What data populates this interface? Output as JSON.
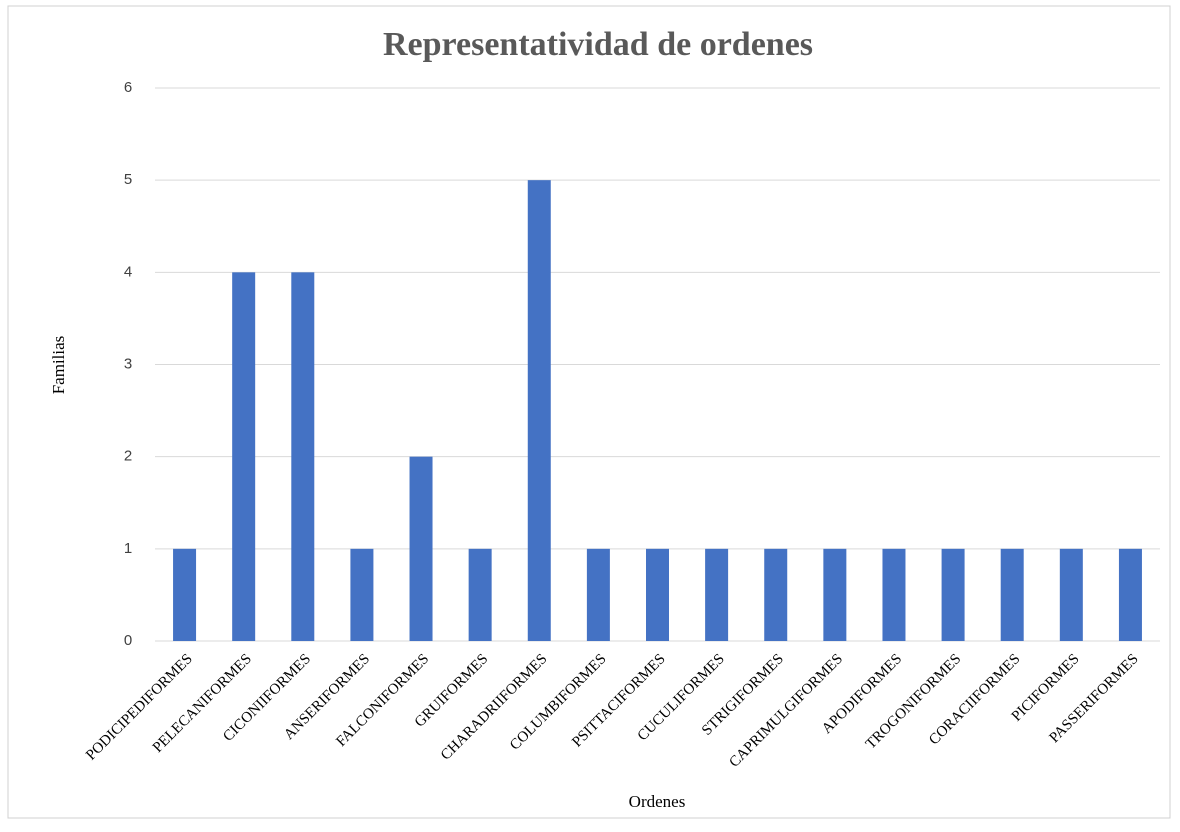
{
  "chart_data": {
    "type": "bar",
    "title": "Representatividad de ordenes",
    "x_label": "Ordenes",
    "y_label": "Familias",
    "categories": [
      "PODICIPEDIFORMES",
      "PELECANIFORMES",
      "CICONIIFORMES",
      "ANSERIFORMES",
      "FALCONIFORMES",
      "GRUIFORMES",
      "CHARADRIIFORMES",
      "COLUMBIFORMES",
      "PSITTACIFORMES",
      "CUCULIFORMES",
      "STRIGIFORMES",
      "CAPRIMULGIFORMES",
      "APODIFORMES",
      "TROGONIFORMES",
      "CORACIIFORMES",
      "PICIFORMES",
      "PASSERIFORMES"
    ],
    "values": [
      1,
      4,
      4,
      1,
      2,
      1,
      5,
      1,
      1,
      1,
      1,
      1,
      1,
      1,
      1,
      1,
      1
    ],
    "color": "#4472c4",
    "ylim": [
      0,
      6
    ],
    "yticks": [
      0,
      1,
      2,
      3,
      4,
      5,
      6
    ],
    "grid": true
  }
}
